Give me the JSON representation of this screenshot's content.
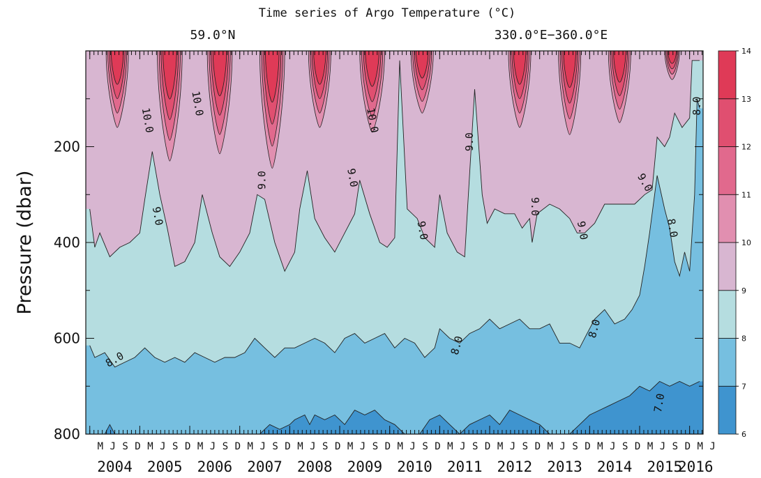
{
  "chart_data": {
    "type": "heatmap",
    "title": "Time series of Argo Temperature (°C)",
    "subtitle_left": "59.0°N",
    "subtitle_right": "330.0°E−360.0°E",
    "ylabel": "Pressure (dbar)",
    "xlabel": "",
    "ylim": [
      800,
      0
    ],
    "yticks": [
      200,
      400,
      600,
      800
    ],
    "year_labels": [
      "2004",
      "2005",
      "2006",
      "2007",
      "2008",
      "2009",
      "2010",
      "2011",
      "2012",
      "2013",
      "2014",
      "2015",
      "2016"
    ],
    "month_labels": [
      "M",
      "J",
      "S",
      "D"
    ],
    "last_month_labels": [
      "M",
      "J"
    ],
    "colorbar": {
      "levels": [
        6,
        7,
        8,
        9,
        10,
        11,
        12,
        13,
        14
      ],
      "colors": [
        "#3f94cf",
        "#76bfe0",
        "#b5dde0",
        "#d8b6d1",
        "#e18fb0",
        "#e1698d",
        "#e04f70",
        "#df3a57"
      ]
    },
    "isotherm_labels": [
      {
        "text": "10.0",
        "t": 2005.15,
        "p": 145,
        "rot": 80
      },
      {
        "text": "10.0",
        "t": 2006.15,
        "p": 110,
        "rot": 80
      },
      {
        "text": "10.0",
        "t": 2009.65,
        "p": 145,
        "rot": 80
      },
      {
        "text": "9.0",
        "t": 2011.6,
        "p": 190,
        "rot": -90
      },
      {
        "text": "9.0",
        "t": 2007.45,
        "p": 270,
        "rot": -90
      },
      {
        "text": "9.0",
        "t": 2005.35,
        "p": 345,
        "rot": 80
      },
      {
        "text": "9.0",
        "t": 2009.25,
        "p": 265,
        "rot": 80
      },
      {
        "text": "9.0",
        "t": 2010.65,
        "p": 375,
        "rot": 80
      },
      {
        "text": "9.0",
        "t": 2012.9,
        "p": 325,
        "rot": 90
      },
      {
        "text": "9.0",
        "t": 2013.85,
        "p": 375,
        "rot": 80
      },
      {
        "text": "9.0",
        "t": 2015.1,
        "p": 275,
        "rot": 60
      },
      {
        "text": "8.0",
        "t": 2016.15,
        "p": 115,
        "rot": -90
      },
      {
        "text": "8.0",
        "t": 2015.65,
        "p": 370,
        "rot": 80
      },
      {
        "text": "8.0",
        "t": 2004.5,
        "p": 645,
        "rot": -30
      },
      {
        "text": "8.0",
        "t": 2011.35,
        "p": 615,
        "rot": -75
      },
      {
        "text": "8.0",
        "t": 2014.1,
        "p": 580,
        "rot": -75
      },
      {
        "text": "7.0",
        "t": 2015.4,
        "p": 735,
        "rot": -80
      }
    ],
    "series": [
      {
        "name": "",
        "iso": 9,
        "values": [
          [
            2004.0,
            330
          ],
          [
            2004.1,
            410
          ],
          [
            2004.2,
            380
          ],
          [
            2004.4,
            430
          ],
          [
            2004.6,
            410
          ],
          [
            2004.8,
            400
          ],
          [
            2005.0,
            380
          ],
          [
            2005.1,
            310
          ],
          [
            2005.25,
            210
          ],
          [
            2005.4,
            300
          ],
          [
            2005.55,
            370
          ],
          [
            2005.7,
            450
          ],
          [
            2005.9,
            440
          ],
          [
            2006.1,
            400
          ],
          [
            2006.25,
            300
          ],
          [
            2006.45,
            380
          ],
          [
            2006.6,
            430
          ],
          [
            2006.8,
            450
          ],
          [
            2007.0,
            420
          ],
          [
            2007.2,
            380
          ],
          [
            2007.35,
            300
          ],
          [
            2007.5,
            310
          ],
          [
            2007.7,
            400
          ],
          [
            2007.9,
            460
          ],
          [
            2008.1,
            420
          ],
          [
            2008.2,
            330
          ],
          [
            2008.35,
            250
          ],
          [
            2008.5,
            350
          ],
          [
            2008.7,
            390
          ],
          [
            2008.9,
            420
          ],
          [
            2009.1,
            380
          ],
          [
            2009.3,
            340
          ],
          [
            2009.4,
            270
          ],
          [
            2009.6,
            340
          ],
          [
            2009.8,
            400
          ],
          [
            2009.95,
            410
          ],
          [
            2010.1,
            390
          ],
          [
            2010.2,
            20
          ],
          [
            2010.35,
            330
          ],
          [
            2010.55,
            350
          ],
          [
            2010.7,
            390
          ],
          [
            2010.9,
            410
          ],
          [
            2011.0,
            300
          ],
          [
            2011.15,
            380
          ],
          [
            2011.35,
            420
          ],
          [
            2011.5,
            430
          ],
          [
            2011.7,
            80
          ],
          [
            2011.85,
            300
          ],
          [
            2011.95,
            360
          ],
          [
            2012.1,
            330
          ],
          [
            2012.3,
            340
          ],
          [
            2012.5,
            340
          ],
          [
            2012.65,
            370
          ],
          [
            2012.8,
            350
          ],
          [
            2012.85,
            400
          ],
          [
            2012.95,
            340
          ],
          [
            2013.2,
            320
          ],
          [
            2013.4,
            330
          ],
          [
            2013.6,
            350
          ],
          [
            2013.75,
            380
          ],
          [
            2013.9,
            380
          ],
          [
            2014.1,
            360
          ],
          [
            2014.3,
            320
          ],
          [
            2014.5,
            320
          ],
          [
            2014.7,
            320
          ],
          [
            2014.9,
            320
          ],
          [
            2015.1,
            300
          ],
          [
            2015.25,
            290
          ],
          [
            2015.35,
            180
          ],
          [
            2015.5,
            200
          ],
          [
            2015.6,
            180
          ],
          [
            2015.7,
            130
          ],
          [
            2015.85,
            160
          ],
          [
            2016.0,
            140
          ],
          [
            2016.05,
            20
          ],
          [
            2016.2,
            20
          ]
        ]
      },
      {
        "name": "",
        "iso": 8,
        "values": [
          [
            2004.0,
            615
          ],
          [
            2004.1,
            640
          ],
          [
            2004.3,
            630
          ],
          [
            2004.5,
            660
          ],
          [
            2004.7,
            650
          ],
          [
            2004.9,
            640
          ],
          [
            2005.1,
            620
          ],
          [
            2005.3,
            640
          ],
          [
            2005.5,
            650
          ],
          [
            2005.7,
            640
          ],
          [
            2005.9,
            650
          ],
          [
            2006.1,
            630
          ],
          [
            2006.3,
            640
          ],
          [
            2006.5,
            650
          ],
          [
            2006.7,
            640
          ],
          [
            2006.9,
            640
          ],
          [
            2007.1,
            630
          ],
          [
            2007.3,
            600
          ],
          [
            2007.5,
            620
          ],
          [
            2007.7,
            640
          ],
          [
            2007.9,
            620
          ],
          [
            2008.1,
            620
          ],
          [
            2008.3,
            610
          ],
          [
            2008.5,
            600
          ],
          [
            2008.7,
            610
          ],
          [
            2008.9,
            630
          ],
          [
            2009.1,
            600
          ],
          [
            2009.3,
            590
          ],
          [
            2009.5,
            610
          ],
          [
            2009.7,
            600
          ],
          [
            2009.9,
            590
          ],
          [
            2010.1,
            620
          ],
          [
            2010.3,
            600
          ],
          [
            2010.5,
            610
          ],
          [
            2010.7,
            640
          ],
          [
            2010.9,
            620
          ],
          [
            2011.0,
            580
          ],
          [
            2011.2,
            600
          ],
          [
            2011.4,
            610
          ],
          [
            2011.6,
            590
          ],
          [
            2011.8,
            580
          ],
          [
            2012.0,
            560
          ],
          [
            2012.2,
            580
          ],
          [
            2012.4,
            570
          ],
          [
            2012.6,
            560
          ],
          [
            2012.8,
            580
          ],
          [
            2013.0,
            580
          ],
          [
            2013.2,
            570
          ],
          [
            2013.4,
            610
          ],
          [
            2013.6,
            610
          ],
          [
            2013.8,
            620
          ],
          [
            2013.95,
            590
          ],
          [
            2014.1,
            560
          ],
          [
            2014.3,
            540
          ],
          [
            2014.5,
            570
          ],
          [
            2014.7,
            560
          ],
          [
            2014.85,
            540
          ],
          [
            2015.0,
            510
          ],
          [
            2015.1,
            450
          ],
          [
            2015.2,
            380
          ],
          [
            2015.35,
            260
          ],
          [
            2015.5,
            330
          ],
          [
            2015.6,
            370
          ],
          [
            2015.7,
            440
          ],
          [
            2015.8,
            470
          ],
          [
            2015.9,
            420
          ],
          [
            2016.0,
            460
          ],
          [
            2016.1,
            300
          ],
          [
            2016.15,
            100
          ],
          [
            2016.2,
            120
          ]
        ]
      },
      {
        "name": "",
        "iso": 7,
        "values": [
          [
            2004.0,
            800
          ],
          [
            2004.3,
            800
          ],
          [
            2004.4,
            780
          ],
          [
            2004.5,
            800
          ],
          [
            2006.0,
            800
          ],
          [
            2007.0,
            800
          ],
          [
            2007.4,
            800
          ],
          [
            2007.6,
            780
          ],
          [
            2007.8,
            790
          ],
          [
            2008.0,
            780
          ],
          [
            2008.1,
            770
          ],
          [
            2008.3,
            760
          ],
          [
            2008.4,
            780
          ],
          [
            2008.5,
            760
          ],
          [
            2008.7,
            770
          ],
          [
            2008.9,
            760
          ],
          [
            2009.1,
            780
          ],
          [
            2009.3,
            750
          ],
          [
            2009.5,
            760
          ],
          [
            2009.7,
            750
          ],
          [
            2009.9,
            770
          ],
          [
            2010.1,
            780
          ],
          [
            2010.3,
            800
          ],
          [
            2010.6,
            800
          ],
          [
            2010.8,
            770
          ],
          [
            2011.0,
            760
          ],
          [
            2011.2,
            780
          ],
          [
            2011.4,
            800
          ],
          [
            2011.6,
            780
          ],
          [
            2011.8,
            770
          ],
          [
            2012.0,
            760
          ],
          [
            2012.2,
            780
          ],
          [
            2012.4,
            750
          ],
          [
            2012.6,
            760
          ],
          [
            2012.8,
            770
          ],
          [
            2013.0,
            780
          ],
          [
            2013.2,
            800
          ],
          [
            2013.6,
            800
          ],
          [
            2013.8,
            780
          ],
          [
            2014.0,
            760
          ],
          [
            2014.2,
            750
          ],
          [
            2014.4,
            740
          ],
          [
            2014.6,
            730
          ],
          [
            2014.8,
            720
          ],
          [
            2015.0,
            700
          ],
          [
            2015.2,
            710
          ],
          [
            2015.4,
            690
          ],
          [
            2015.6,
            700
          ],
          [
            2015.8,
            690
          ],
          [
            2016.0,
            700
          ],
          [
            2016.2,
            690
          ]
        ]
      }
    ]
  }
}
